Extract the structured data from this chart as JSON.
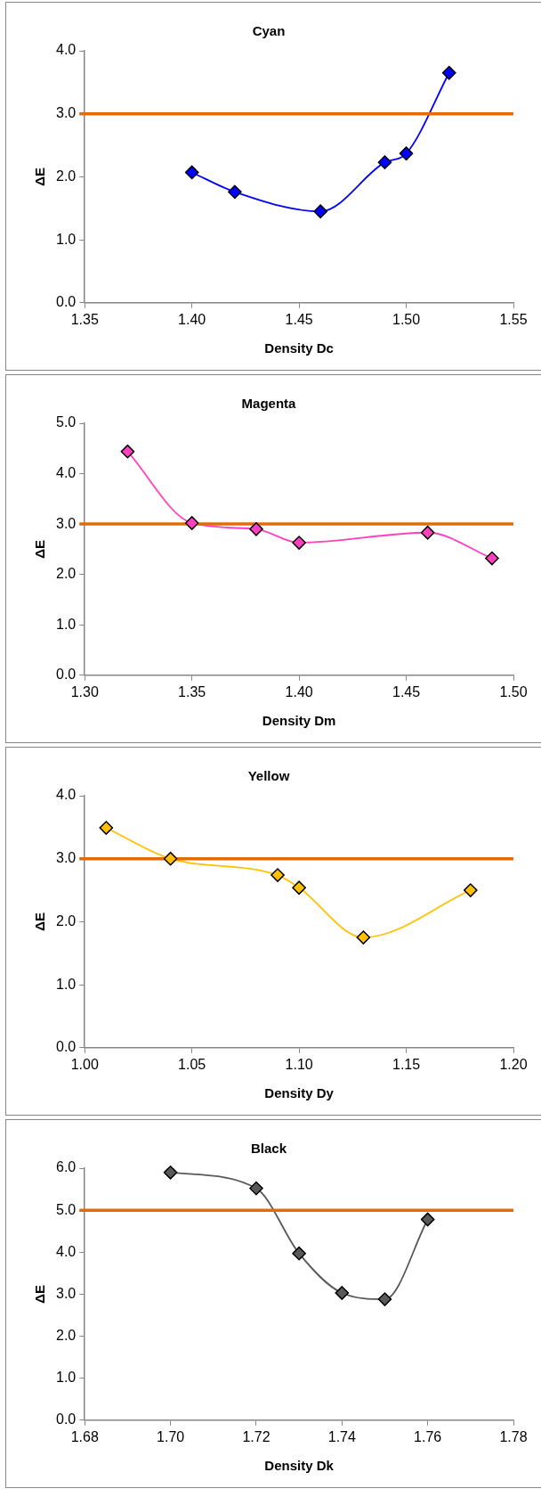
{
  "chart_data": [
    {
      "type": "line",
      "title": "Cyan",
      "xlabel": "Density Dc",
      "ylabel": "ΔE",
      "x": [
        1.4,
        1.42,
        1.46,
        1.49,
        1.5,
        1.52
      ],
      "series": [
        {
          "color": "#0000ff",
          "values": [
            2.07,
            1.76,
            1.45,
            2.23,
            2.37,
            3.65
          ]
        }
      ],
      "xlim": [
        1.35,
        1.55
      ],
      "xticks": [
        {
          "value": 1.35,
          "label": "1.35"
        },
        {
          "value": 1.4,
          "label": "1.40"
        },
        {
          "value": 1.45,
          "label": "1.45"
        },
        {
          "value": 1.5,
          "label": "1.50"
        },
        {
          "value": 1.55,
          "label": "1.55"
        }
      ],
      "ylim": [
        0,
        4
      ],
      "yticks": [
        {
          "value": 0,
          "label": "0.0"
        },
        {
          "value": 1,
          "label": "1.0"
        },
        {
          "value": 2,
          "label": "2.0"
        },
        {
          "value": 3,
          "label": "3.0"
        },
        {
          "value": 4,
          "label": "4.0"
        }
      ],
      "ref_lines": [
        {
          "axis": "y",
          "value": 3,
          "color": "#e36c0a"
        }
      ],
      "grid": false,
      "legend": false,
      "marker": "diamond"
    },
    {
      "type": "line",
      "title": "Magenta",
      "xlabel": "Density Dm",
      "ylabel": "ΔE",
      "x": [
        1.32,
        1.35,
        1.38,
        1.4,
        1.46,
        1.49
      ],
      "series": [
        {
          "color": "#ff40c0",
          "values": [
            4.44,
            3.02,
            2.9,
            2.63,
            2.83,
            2.32
          ]
        }
      ],
      "xlim": [
        1.3,
        1.5
      ],
      "xticks": [
        {
          "value": 1.3,
          "label": "1.30"
        },
        {
          "value": 1.35,
          "label": "1.35"
        },
        {
          "value": 1.4,
          "label": "1.40"
        },
        {
          "value": 1.45,
          "label": "1.45"
        },
        {
          "value": 1.5,
          "label": "1.50"
        }
      ],
      "ylim": [
        0,
        5
      ],
      "yticks": [
        {
          "value": 0,
          "label": "0.0"
        },
        {
          "value": 1,
          "label": "1.0"
        },
        {
          "value": 2,
          "label": "2.0"
        },
        {
          "value": 3,
          "label": "3.0"
        },
        {
          "value": 4,
          "label": "4.0"
        },
        {
          "value": 5,
          "label": "5.0"
        }
      ],
      "ref_lines": [
        {
          "axis": "y",
          "value": 3,
          "color": "#e36c0a"
        }
      ],
      "grid": false,
      "legend": false,
      "marker": "diamond"
    },
    {
      "type": "line",
      "title": "Yellow",
      "xlabel": "Density Dy",
      "ylabel": "ΔE",
      "x": [
        1.01,
        1.04,
        1.09,
        1.1,
        1.13,
        1.18
      ],
      "series": [
        {
          "color": "#ffc000",
          "values": [
            3.49,
            3.0,
            2.74,
            2.54,
            1.75,
            2.5
          ]
        }
      ],
      "xlim": [
        1.0,
        1.2
      ],
      "xticks": [
        {
          "value": 1.0,
          "label": "1.00"
        },
        {
          "value": 1.05,
          "label": "1.05"
        },
        {
          "value": 1.1,
          "label": "1.10"
        },
        {
          "value": 1.15,
          "label": "1.15"
        },
        {
          "value": 1.2,
          "label": "1.20"
        }
      ],
      "ylim": [
        0,
        4
      ],
      "yticks": [
        {
          "value": 0,
          "label": "0.0"
        },
        {
          "value": 1,
          "label": "1.0"
        },
        {
          "value": 2,
          "label": "2.0"
        },
        {
          "value": 3,
          "label": "3.0"
        },
        {
          "value": 4,
          "label": "4.0"
        }
      ],
      "ref_lines": [
        {
          "axis": "y",
          "value": 3,
          "color": "#e36c0a"
        }
      ],
      "grid": false,
      "legend": false,
      "marker": "diamond"
    },
    {
      "type": "line",
      "title": "Black",
      "xlabel": "Density Dk",
      "ylabel": "ΔE",
      "x": [
        1.7,
        1.72,
        1.73,
        1.74,
        1.75,
        1.76
      ],
      "series": [
        {
          "color": "#595959",
          "values": [
            5.9,
            5.52,
            3.97,
            3.03,
            2.88,
            4.78
          ]
        }
      ],
      "xlim": [
        1.68,
        1.78
      ],
      "xticks": [
        {
          "value": 1.68,
          "label": "1.68"
        },
        {
          "value": 1.7,
          "label": "1.70"
        },
        {
          "value": 1.72,
          "label": "1.72"
        },
        {
          "value": 1.74,
          "label": "1.74"
        },
        {
          "value": 1.76,
          "label": "1.76"
        },
        {
          "value": 1.78,
          "label": "1.78"
        }
      ],
      "ylim": [
        0,
        6
      ],
      "yticks": [
        {
          "value": 0,
          "label": "0.0"
        },
        {
          "value": 1,
          "label": "1.0"
        },
        {
          "value": 2,
          "label": "2.0"
        },
        {
          "value": 3,
          "label": "3.0"
        },
        {
          "value": 4,
          "label": "4.0"
        },
        {
          "value": 5,
          "label": "5.0"
        },
        {
          "value": 6,
          "label": "6.0"
        }
      ],
      "ref_lines": [
        {
          "axis": "y",
          "value": 5,
          "color": "#e36c0a"
        }
      ],
      "grid": false,
      "legend": false,
      "marker": "diamond"
    }
  ]
}
